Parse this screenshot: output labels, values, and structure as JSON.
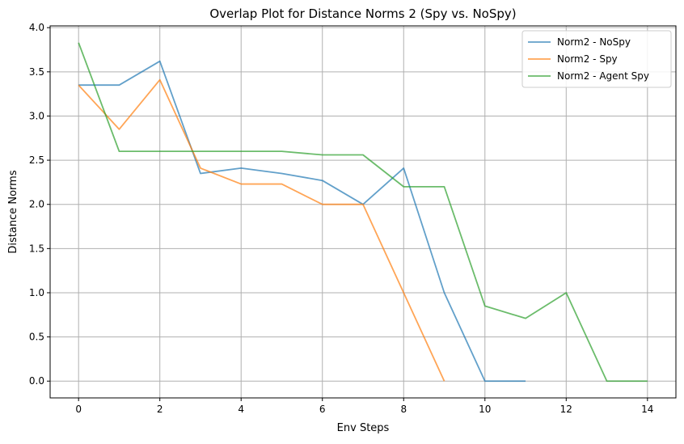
{
  "chart_data": {
    "type": "line",
    "title": "Overlap Plot for Distance Norms 2 (Spy vs. NoSpy)",
    "xlabel": "Env Steps",
    "ylabel": "Distance Norms",
    "xlim": [
      -0.7,
      14.7
    ],
    "ylim": [
      -0.19,
      4.02
    ],
    "xticks": [
      0,
      2,
      4,
      6,
      8,
      10,
      12,
      14
    ],
    "yticks": [
      0.0,
      0.5,
      1.0,
      1.5,
      2.0,
      2.5,
      3.0,
      3.5,
      4.0
    ],
    "grid": true,
    "legend_position": "top-right",
    "series": [
      {
        "name": "Norm2 - NoSpy",
        "color": "#1f77b4",
        "x": [
          0,
          1,
          2,
          3,
          4,
          5,
          6,
          7,
          8,
          9,
          10,
          11
        ],
        "y": [
          3.35,
          3.35,
          3.62,
          2.35,
          2.41,
          2.35,
          2.27,
          2.0,
          2.41,
          1.0,
          0.0,
          0.0
        ]
      },
      {
        "name": "Norm2 - Spy",
        "color": "#ff7f0e",
        "x": [
          0,
          1,
          2,
          3,
          4,
          5,
          6,
          7,
          8,
          9
        ],
        "y": [
          3.35,
          2.85,
          3.41,
          2.41,
          2.23,
          2.23,
          2.0,
          2.0,
          1.0,
          0.0
        ]
      },
      {
        "name": "Norm2 - Agent Spy",
        "color": "#2ca02c",
        "x": [
          0,
          1,
          2,
          3,
          4,
          5,
          6,
          7,
          8,
          9,
          10,
          11,
          12,
          13,
          14
        ],
        "y": [
          3.83,
          2.6,
          2.6,
          2.6,
          2.6,
          2.6,
          2.56,
          2.56,
          2.2,
          2.2,
          0.85,
          0.71,
          1.0,
          0.0,
          0.0
        ]
      }
    ]
  }
}
